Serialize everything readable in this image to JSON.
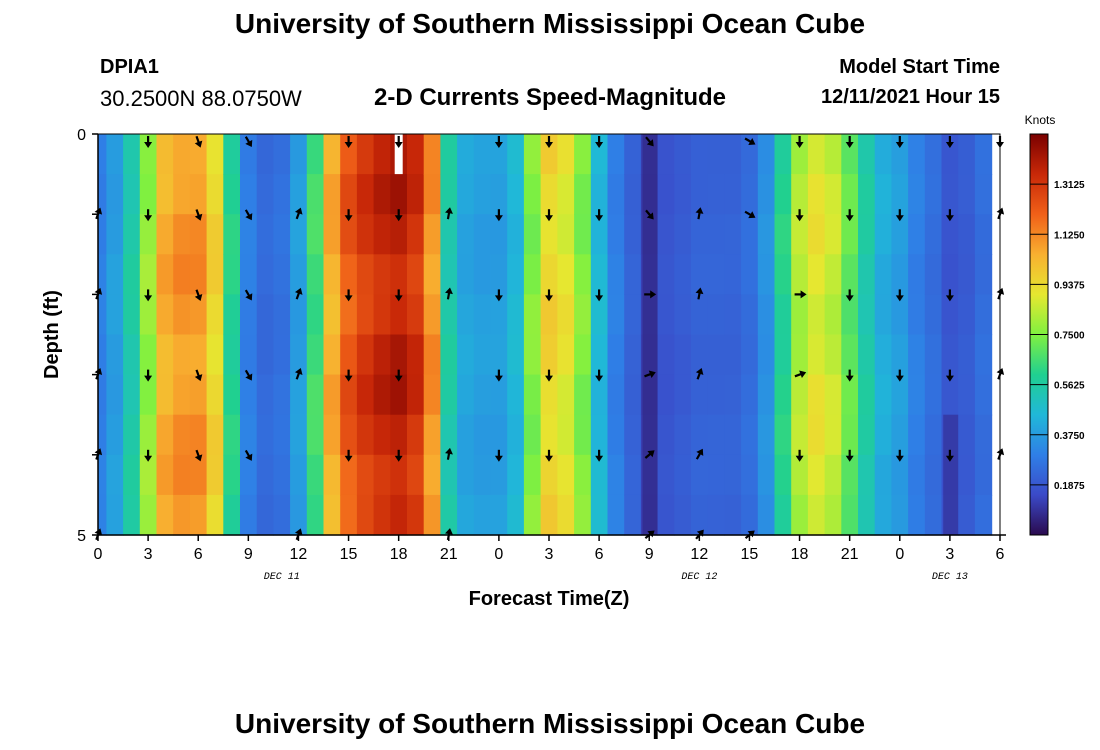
{
  "header": {
    "title": "University of Southern Mississippi Ocean Cube",
    "station_id": "DPIA1",
    "station_coords": "30.2500N  88.0750W",
    "plot_title": "2-D Currents Speed-Magnitude",
    "model_start_label": "Model Start Time",
    "model_start_value": "12/11/2021 Hour 15",
    "bottom_title": "University of Southern Mississippi Ocean Cube"
  },
  "chart_data": {
    "type": "heatmap",
    "title": "2-D Currents Speed-Magnitude",
    "xlabel": "Forecast Time(Z)",
    "ylabel": "Depth (ft)",
    "x_hours": [
      0,
      54
    ],
    "x_tick_labels": [
      "0",
      "3",
      "6",
      "9",
      "12",
      "15",
      "18",
      "21",
      "0",
      "3",
      "6",
      "9",
      "12",
      "15",
      "18",
      "21",
      "0",
      "3",
      "6"
    ],
    "date_labels": [
      {
        "label": "DEC 11",
        "hour": 11
      },
      {
        "label": "DEC 12",
        "hour": 36
      },
      {
        "label": "DEC 13",
        "hour": 51
      }
    ],
    "y_tick_labels": [
      {
        "label": "0",
        "depth": 0
      },
      {
        "label": "5",
        "depth": 5
      }
    ],
    "ylim": [
      0,
      5
    ],
    "colorbar": {
      "label": "Knots",
      "min": 0.0,
      "max": 1.5,
      "ticks": [
        "0.1875",
        "0.3750",
        "0.5625",
        "0.7500",
        "0.9375",
        "1.1250",
        "1.3125"
      ],
      "colors": [
        "#2a0a4e",
        "#3b4ac8",
        "#2f7fe6",
        "#20b8d8",
        "#20d090",
        "#80f040",
        "#e6e830",
        "#f8b030",
        "#f06018",
        "#c82808",
        "#7a0000"
      ]
    },
    "speed_profile_knots": [
      [
        0,
        0.3
      ],
      [
        1,
        0.38
      ],
      [
        2,
        0.55
      ],
      [
        3,
        0.78
      ],
      [
        4,
        1.05
      ],
      [
        5,
        1.1
      ],
      [
        6,
        1.1
      ],
      [
        7,
        0.95
      ],
      [
        8,
        0.6
      ],
      [
        9,
        0.3
      ],
      [
        10,
        0.24
      ],
      [
        11,
        0.26
      ],
      [
        12,
        0.38
      ],
      [
        13,
        0.65
      ],
      [
        14,
        1.05
      ],
      [
        15,
        1.22
      ],
      [
        16,
        1.3
      ],
      [
        17,
        1.35
      ],
      [
        18,
        1.38
      ],
      [
        19,
        1.32
      ],
      [
        20,
        1.1
      ],
      [
        21,
        0.55
      ],
      [
        22,
        0.4
      ],
      [
        23,
        0.38
      ],
      [
        24,
        0.38
      ],
      [
        25,
        0.45
      ],
      [
        26,
        0.75
      ],
      [
        27,
        0.95
      ],
      [
        28,
        0.9
      ],
      [
        29,
        0.75
      ],
      [
        30,
        0.45
      ],
      [
        31,
        0.3
      ],
      [
        32,
        0.22
      ],
      [
        33,
        0.12
      ],
      [
        34,
        0.18
      ],
      [
        35,
        0.2
      ],
      [
        36,
        0.22
      ],
      [
        37,
        0.22
      ],
      [
        38,
        0.22
      ],
      [
        39,
        0.25
      ],
      [
        40,
        0.35
      ],
      [
        41,
        0.6
      ],
      [
        42,
        0.82
      ],
      [
        43,
        0.9
      ],
      [
        44,
        0.85
      ],
      [
        45,
        0.7
      ],
      [
        46,
        0.55
      ],
      [
        47,
        0.42
      ],
      [
        48,
        0.38
      ],
      [
        49,
        0.3
      ],
      [
        50,
        0.25
      ],
      [
        51,
        0.18
      ],
      [
        52,
        0.2
      ],
      [
        53,
        0.25
      ],
      [
        54,
        0.35
      ]
    ],
    "depth_rows": [
      0,
      0.5,
      1,
      1.5,
      2,
      2.5,
      3,
      3.5,
      4,
      4.5
    ],
    "arrow_hours": [
      0,
      3,
      6,
      9,
      12,
      15,
      18,
      21,
      24,
      27,
      30,
      33,
      36,
      39,
      42,
      45,
      48,
      51,
      54
    ],
    "arrow_depths": [
      0,
      1,
      2,
      3,
      4,
      5
    ],
    "arrow_direction_deg": [
      [
        null,
        180,
        160,
        150,
        null,
        180,
        180,
        null,
        180,
        180,
        180,
        140,
        null,
        120,
        180,
        180,
        180,
        180,
        180
      ],
      [
        20,
        180,
        160,
        150,
        20,
        180,
        180,
        10,
        180,
        180,
        180,
        140,
        10,
        120,
        180,
        180,
        180,
        180,
        20
      ],
      [
        20,
        180,
        160,
        150,
        20,
        180,
        180,
        10,
        180,
        180,
        180,
        90,
        10,
        null,
        90,
        180,
        180,
        180,
        20
      ],
      [
        20,
        180,
        160,
        150,
        20,
        180,
        180,
        null,
        180,
        180,
        180,
        70,
        20,
        null,
        70,
        180,
        180,
        180,
        20
      ],
      [
        20,
        180,
        160,
        150,
        null,
        180,
        180,
        10,
        180,
        180,
        180,
        50,
        30,
        null,
        180,
        180,
        180,
        180,
        20
      ],
      [
        20,
        null,
        null,
        null,
        20,
        null,
        null,
        10,
        null,
        null,
        null,
        50,
        40,
        50,
        null,
        null,
        null,
        null,
        null
      ]
    ],
    "missing_cell": {
      "hour": 18,
      "depth_from": 0,
      "depth_to": 0.5
    }
  }
}
